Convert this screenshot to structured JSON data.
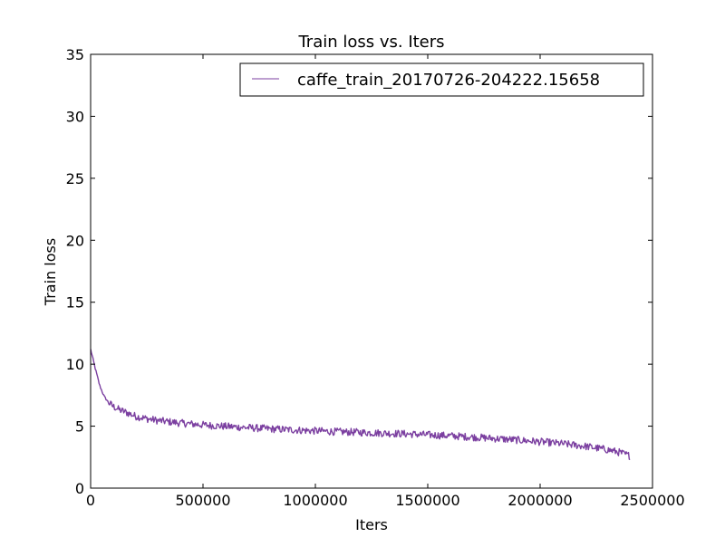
{
  "chart_data": {
    "type": "line",
    "title": "Train loss  vs. Iters",
    "xlabel": "Iters",
    "ylabel": "Train loss",
    "xlim": [
      0,
      2500000
    ],
    "ylim": [
      0,
      35
    ],
    "xticks": [
      0,
      500000,
      1000000,
      1500000,
      2000000,
      2500000
    ],
    "yticks": [
      0,
      5,
      10,
      15,
      20,
      25,
      30,
      35
    ],
    "xtick_labels": [
      "0",
      "500000",
      "1000000",
      "1500000",
      "2000000",
      "2500000"
    ],
    "ytick_labels": [
      "0",
      "5",
      "10",
      "15",
      "20",
      "25",
      "30",
      "35"
    ],
    "grid": false,
    "legend_position": "upper right",
    "series": [
      {
        "name": "caffe_train_20170726-204222.15658",
        "color": "#7b3fa0",
        "x": [
          0,
          20000,
          40000,
          60000,
          80000,
          100000,
          130000,
          160000,
          200000,
          250000,
          300000,
          400000,
          500000,
          600000,
          700000,
          800000,
          900000,
          1000000,
          1100000,
          1200000,
          1300000,
          1400000,
          1500000,
          1600000,
          1700000,
          1800000,
          1900000,
          2000000,
          2100000,
          2200000,
          2300000,
          2350000,
          2400000
        ],
        "y": [
          11.2,
          9.7,
          8.3,
          7.4,
          6.9,
          6.6,
          6.3,
          6.1,
          5.8,
          5.6,
          5.45,
          5.25,
          5.1,
          4.98,
          4.88,
          4.78,
          4.7,
          4.62,
          4.55,
          4.5,
          4.44,
          4.38,
          4.3,
          4.22,
          4.12,
          4.0,
          3.88,
          3.74,
          3.58,
          3.38,
          3.1,
          2.9,
          2.6
        ],
        "noise_amplitude": 0.3
      }
    ]
  }
}
